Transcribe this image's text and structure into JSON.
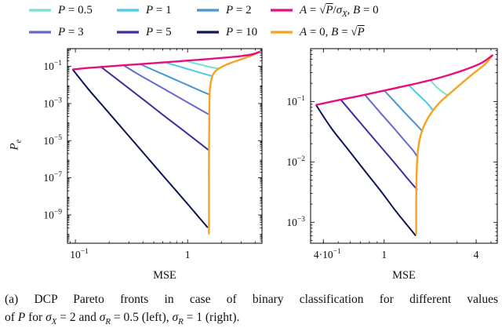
{
  "palette": {
    "p05": "#79e2cf",
    "p1": "#4ec9e6",
    "p2": "#4596d2",
    "p3": "#6569cf",
    "p5": "#402b9f",
    "p10": "#0d1557",
    "analog": "#e90e7e",
    "digital": "#f6a31f",
    "axis": "#000000",
    "text": "#111111"
  },
  "legend": {
    "items": [
      {
        "series": "p05",
        "label": [
          {
            "t": "P",
            "i": 1
          },
          {
            "t": " = 0.5"
          }
        ]
      },
      {
        "series": "p1",
        "label": [
          {
            "t": "P",
            "i": 1
          },
          {
            "t": " = 1"
          }
        ]
      },
      {
        "series": "p2",
        "label": [
          {
            "t": "P",
            "i": 1
          },
          {
            "t": " = 2"
          }
        ]
      },
      {
        "series": "analog",
        "label": [
          {
            "t": "A",
            "i": 1
          },
          {
            "t": " = "
          },
          {
            "t": "√"
          },
          {
            "t": "P",
            "i": 1,
            "o": 1
          },
          {
            "t": "/"
          },
          {
            "t": "σ",
            "i": 1
          },
          {
            "t": "X",
            "i": 1,
            "sub": 1
          },
          {
            "t": ", "
          },
          {
            "t": "B",
            "i": 1
          },
          {
            "t": " = 0"
          }
        ]
      },
      {
        "series": "p3",
        "label": [
          {
            "t": "P",
            "i": 1
          },
          {
            "t": " = 3"
          }
        ]
      },
      {
        "series": "p5",
        "label": [
          {
            "t": "P",
            "i": 1
          },
          {
            "t": " = 5"
          }
        ]
      },
      {
        "series": "p10",
        "label": [
          {
            "t": "P",
            "i": 1
          },
          {
            "t": " = 10"
          }
        ]
      },
      {
        "series": "digital",
        "label": [
          {
            "t": "A",
            "i": 1
          },
          {
            "t": " = 0, "
          },
          {
            "t": "B",
            "i": 1
          },
          {
            "t": " = "
          },
          {
            "t": "√"
          },
          {
            "t": "P",
            "i": 1,
            "o": 1
          }
        ]
      }
    ]
  },
  "ylabel": [
    {
      "t": "P",
      "i": 1
    },
    {
      "t": "e",
      "i": 1,
      "sub": 1
    }
  ],
  "caption": {
    "line1": "(a) DCP Pareto fronts in case of binary classification for different values",
    "line2": [
      {
        "t": "of "
      },
      {
        "t": "P",
        "i": 1
      },
      {
        "t": " for "
      },
      {
        "t": "σ",
        "i": 1
      },
      {
        "t": "X",
        "i": 1,
        "sub": 1
      },
      {
        "t": " = 2 and "
      },
      {
        "t": "σ",
        "i": 1
      },
      {
        "t": "R",
        "i": 1,
        "sub": 1
      },
      {
        "t": " = 0.5 (left), "
      },
      {
        "t": "σ",
        "i": 1
      },
      {
        "t": "R",
        "i": 1,
        "sub": 1
      },
      {
        "t": " = 1 (right)."
      }
    ]
  },
  "chart_data": [
    {
      "id": "left",
      "type": "line",
      "xlabel": "MSE",
      "x_scale": "log",
      "y_scale": "log",
      "xlim": [
        0.085,
        4.6
      ],
      "ylim": [
        3e-11,
        0.9
      ],
      "x_ticks": [
        {
          "v": 0.1,
          "m": "10",
          "e": "−1"
        },
        {
          "v": 1,
          "m": "1",
          "e": ""
        }
      ],
      "y_ticks": [
        {
          "v": 0.1,
          "m": "10",
          "e": "−1"
        },
        {
          "v": 0.001,
          "m": "10",
          "e": "−3"
        },
        {
          "v": 1e-05,
          "m": "10",
          "e": "−5"
        },
        {
          "v": 1e-07,
          "m": "10",
          "e": "−7"
        },
        {
          "v": 1e-09,
          "m": "10",
          "e": "−9"
        }
      ],
      "series": [
        {
          "name": "P = 0.5",
          "key": "p05",
          "points": [
            [
              0.95,
              0.2
            ],
            [
              1.12,
              0.155
            ],
            [
              1.3,
              0.125
            ],
            [
              1.5,
              0.1
            ],
            [
              1.68,
              0.086
            ],
            [
              1.89,
              0.076
            ]
          ]
        },
        {
          "name": "P = 1",
          "key": "p1",
          "points": [
            [
              0.62,
              0.168
            ],
            [
              0.8,
              0.107
            ],
            [
              1.0,
              0.072
            ],
            [
              1.2,
              0.052
            ],
            [
              1.42,
              0.039
            ],
            [
              1.66,
              0.03
            ]
          ]
        },
        {
          "name": "P = 2",
          "key": "p2",
          "points": [
            [
              0.38,
              0.13
            ],
            [
              0.5,
              0.062
            ],
            [
              0.65,
              0.031
            ],
            [
              0.85,
              0.0151
            ],
            [
              1.1,
              0.0076
            ],
            [
              1.35,
              0.0044
            ],
            [
              1.57,
              0.003
            ]
          ]
        },
        {
          "name": "P = 3",
          "key": "p3",
          "points": [
            [
              0.27,
              0.113
            ],
            [
              0.35,
              0.043
            ],
            [
              0.47,
              0.0155
            ],
            [
              0.65,
              0.0051
            ],
            [
              0.9,
              0.00165
            ],
            [
              1.15,
              0.00071
            ],
            [
              1.4,
              0.00036
            ],
            [
              1.56,
              0.00025
            ]
          ]
        },
        {
          "name": "P = 5",
          "key": "p5",
          "points": [
            [
              0.17,
              0.092
            ],
            [
              0.22,
              0.0276
            ],
            [
              0.3,
              0.0065
            ],
            [
              0.42,
              0.00135
            ],
            [
              0.6,
              0.00025
            ],
            [
              0.85,
              5e-05
            ],
            [
              1.1,
              1.5e-05
            ],
            [
              1.35,
              5.8e-06
            ],
            [
              1.55,
              3e-06
            ]
          ]
        },
        {
          "name": "P = 10",
          "key": "p10",
          "points": [
            [
              0.095,
              0.066
            ],
            [
              0.13,
              0.0061
            ],
            [
              0.18,
              0.00063
            ],
            [
              0.25,
              6.3e-05
            ],
            [
              0.35,
              6e-06
            ],
            [
              0.5,
              4.9e-07
            ],
            [
              0.7,
              4.7e-08
            ],
            [
              1.0,
              3.9e-09
            ],
            [
              1.25,
              8e-10
            ],
            [
              1.5,
              2.2e-10
            ]
          ]
        },
        {
          "name": "A = 0, B = √P",
          "key": "digital",
          "points": [
            [
              1.55,
              1e-10
            ],
            [
              1.55,
              1e-08
            ],
            [
              1.55,
              1e-06
            ],
            [
              1.56,
              0.0001
            ],
            [
              1.57,
              0.003
            ],
            [
              1.62,
              0.018
            ],
            [
              1.72,
              0.045
            ],
            [
              1.95,
              0.085
            ],
            [
              2.4,
              0.15
            ],
            [
              3.0,
              0.24
            ],
            [
              3.7,
              0.38
            ],
            [
              4.35,
              0.6
            ]
          ]
        },
        {
          "name": "A = √P/σX, B = 0",
          "key": "analog",
          "points": [
            [
              0.095,
              0.068
            ],
            [
              0.13,
              0.082
            ],
            [
              0.2,
              0.1
            ],
            [
              0.3,
              0.12
            ],
            [
              0.5,
              0.15
            ],
            [
              0.8,
              0.185
            ],
            [
              1.3,
              0.23
            ],
            [
              2.0,
              0.285
            ],
            [
              3.0,
              0.36
            ],
            [
              3.8,
              0.45
            ],
            [
              4.35,
              0.6
            ]
          ]
        }
      ]
    },
    {
      "id": "right",
      "type": "line",
      "xlabel": "MSE",
      "x_scale": "log",
      "y_scale": "log",
      "xlim": [
        0.33,
        5.5
      ],
      "ylim": [
        0.00045,
        0.75
      ],
      "x_ticks": [
        {
          "v": 0.4,
          "m": "4·10",
          "e": "−1"
        },
        {
          "v": 1,
          "m": "1",
          "e": ""
        },
        {
          "v": 4,
          "m": "4",
          "e": ""
        }
      ],
      "y_ticks": [
        {
          "v": 0.1,
          "m": "10",
          "e": "−1"
        },
        {
          "v": 0.01,
          "m": "10",
          "e": "−2"
        },
        {
          "v": 0.001,
          "m": "10",
          "e": "−3"
        }
      ],
      "series": [
        {
          "name": "P = 0.5",
          "key": "p05",
          "points": [
            [
              2.0,
              0.228
            ],
            [
              2.15,
              0.185
            ],
            [
              2.3,
              0.158
            ],
            [
              2.45,
              0.14
            ],
            [
              2.6,
              0.126
            ]
          ]
        },
        {
          "name": "P = 1",
          "key": "p1",
          "points": [
            [
              1.45,
              0.187
            ],
            [
              1.6,
              0.145
            ],
            [
              1.75,
              0.117
            ],
            [
              1.95,
              0.089
            ],
            [
              2.08,
              0.072
            ]
          ]
        },
        {
          "name": "P = 2",
          "key": "p2",
          "points": [
            [
              1.0,
              0.152
            ],
            [
              1.2,
              0.093
            ],
            [
              1.4,
              0.061
            ],
            [
              1.6,
              0.043
            ],
            [
              1.78,
              0.032
            ]
          ]
        },
        {
          "name": "P = 3",
          "key": "p3",
          "points": [
            [
              0.75,
              0.128
            ],
            [
              0.95,
              0.064
            ],
            [
              1.15,
              0.037
            ],
            [
              1.35,
              0.023
            ],
            [
              1.55,
              0.0153
            ],
            [
              1.655,
              0.012
            ]
          ]
        },
        {
          "name": "P = 5",
          "key": "p5",
          "points": [
            [
              0.52,
              0.107
            ],
            [
              0.65,
              0.055
            ],
            [
              0.82,
              0.0275
            ],
            [
              1.0,
              0.0153
            ],
            [
              1.2,
              0.0089
            ],
            [
              1.45,
              0.005
            ],
            [
              1.64,
              0.0035
            ]
          ]
        },
        {
          "name": "P = 10",
          "key": "p10",
          "points": [
            [
              0.36,
              0.086
            ],
            [
              0.45,
              0.0365
            ],
            [
              0.58,
              0.0161
            ],
            [
              0.75,
              0.007
            ],
            [
              0.95,
              0.0033
            ],
            [
              1.2,
              0.0015
            ],
            [
              1.45,
              0.00083
            ],
            [
              1.6,
              0.00061
            ]
          ]
        },
        {
          "name": "A = 0, B = √P",
          "key": "digital",
          "points": [
            [
              1.62,
              0.00065
            ],
            [
              1.62,
              0.002
            ],
            [
              1.63,
              0.006
            ],
            [
              1.66,
              0.015
            ],
            [
              1.75,
              0.03
            ],
            [
              1.95,
              0.055
            ],
            [
              2.3,
              0.095
            ],
            [
              2.9,
              0.16
            ],
            [
              3.7,
              0.27
            ],
            [
              4.6,
              0.42
            ],
            [
              5.1,
              0.58
            ]
          ]
        },
        {
          "name": "A = √P/σX, B = 0",
          "key": "analog",
          "points": [
            [
              0.36,
              0.088
            ],
            [
              0.5,
              0.105
            ],
            [
              0.7,
              0.125
            ],
            [
              1.0,
              0.152
            ],
            [
              1.5,
              0.19
            ],
            [
              2.2,
              0.24
            ],
            [
              3.2,
              0.32
            ],
            [
              4.3,
              0.43
            ],
            [
              5.1,
              0.58
            ]
          ]
        }
      ]
    }
  ]
}
